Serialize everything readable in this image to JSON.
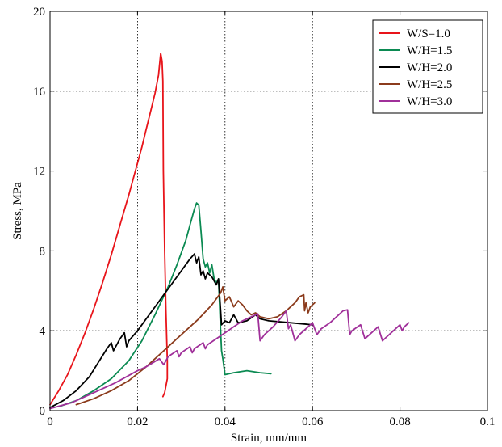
{
  "chart_data": {
    "type": "line",
    "title": "",
    "xlabel": "Strain, mm/mm",
    "ylabel": "Stress, MPa",
    "xlim": [
      0,
      0.1
    ],
    "ylim": [
      0,
      20
    ],
    "x_ticks": [
      0,
      0.02,
      0.04,
      0.06,
      0.08,
      0.1
    ],
    "x_tick_labels": [
      "0",
      "0.02",
      "0.04",
      "0.06",
      "0.08",
      "0.1"
    ],
    "y_ticks": [
      0,
      4,
      8,
      12,
      16,
      20
    ],
    "y_tick_labels": [
      "0",
      "4",
      "8",
      "12",
      "16",
      "20"
    ],
    "grid": true,
    "legend_position": "top-right",
    "series": [
      {
        "name": "W/S=1.0",
        "color": "#e8141a",
        "points": [
          [
            0,
            0.3
          ],
          [
            0.002,
            1.0
          ],
          [
            0.004,
            1.8
          ],
          [
            0.006,
            2.8
          ],
          [
            0.008,
            3.9
          ],
          [
            0.01,
            5.1
          ],
          [
            0.012,
            6.4
          ],
          [
            0.014,
            7.8
          ],
          [
            0.016,
            9.3
          ],
          [
            0.018,
            10.8
          ],
          [
            0.02,
            12.4
          ],
          [
            0.021,
            13.2
          ],
          [
            0.022,
            14.1
          ],
          [
            0.023,
            15.0
          ],
          [
            0.024,
            15.9
          ],
          [
            0.0248,
            16.8
          ],
          [
            0.0253,
            17.9
          ],
          [
            0.0256,
            17.5
          ],
          [
            0.0258,
            16.5
          ],
          [
            0.0259,
            12.0
          ],
          [
            0.0262,
            8.0
          ],
          [
            0.0265,
            5.0
          ],
          [
            0.0268,
            2.5
          ],
          [
            0.0268,
            1.6
          ],
          [
            0.0262,
            0.9
          ],
          [
            0.0258,
            0.7
          ]
        ]
      },
      {
        "name": "W/H=1.5",
        "color": "#0b8a52",
        "points": [
          [
            0.002,
            0.2
          ],
          [
            0.006,
            0.5
          ],
          [
            0.01,
            1.0
          ],
          [
            0.014,
            1.6
          ],
          [
            0.018,
            2.5
          ],
          [
            0.021,
            3.5
          ],
          [
            0.024,
            4.8
          ],
          [
            0.027,
            6.2
          ],
          [
            0.029,
            7.3
          ],
          [
            0.031,
            8.5
          ],
          [
            0.032,
            9.3
          ],
          [
            0.033,
            10.1
          ],
          [
            0.0335,
            10.4
          ],
          [
            0.034,
            10.3
          ],
          [
            0.0345,
            9.0
          ],
          [
            0.035,
            7.6
          ],
          [
            0.0355,
            7.2
          ],
          [
            0.036,
            7.4
          ],
          [
            0.0365,
            6.9
          ],
          [
            0.037,
            7.3
          ],
          [
            0.0375,
            6.6
          ],
          [
            0.038,
            6.4
          ],
          [
            0.0385,
            6.6
          ],
          [
            0.039,
            4.0
          ],
          [
            0.0392,
            3.0
          ],
          [
            0.0395,
            2.6
          ],
          [
            0.04,
            1.8
          ],
          [
            0.042,
            1.9
          ],
          [
            0.045,
            2.0
          ],
          [
            0.048,
            1.9
          ],
          [
            0.0505,
            1.85
          ]
        ]
      },
      {
        "name": "W/H=2.0",
        "color": "#000000",
        "points": [
          [
            0,
            0.15
          ],
          [
            0.003,
            0.5
          ],
          [
            0.006,
            1.0
          ],
          [
            0.009,
            1.7
          ],
          [
            0.011,
            2.4
          ],
          [
            0.013,
            3.1
          ],
          [
            0.014,
            3.4
          ],
          [
            0.0145,
            3.0
          ],
          [
            0.015,
            3.2
          ],
          [
            0.016,
            3.6
          ],
          [
            0.017,
            3.9
          ],
          [
            0.0175,
            3.2
          ],
          [
            0.018,
            3.5
          ],
          [
            0.02,
            4.0
          ],
          [
            0.022,
            4.6
          ],
          [
            0.024,
            5.2
          ],
          [
            0.026,
            5.8
          ],
          [
            0.028,
            6.4
          ],
          [
            0.03,
            7.0
          ],
          [
            0.031,
            7.3
          ],
          [
            0.032,
            7.6
          ],
          [
            0.033,
            7.85
          ],
          [
            0.0335,
            7.4
          ],
          [
            0.034,
            7.7
          ],
          [
            0.0345,
            6.8
          ],
          [
            0.035,
            7.0
          ],
          [
            0.0355,
            6.6
          ],
          [
            0.036,
            6.9
          ],
          [
            0.037,
            6.7
          ],
          [
            0.038,
            6.3
          ],
          [
            0.0385,
            6.6
          ],
          [
            0.039,
            5.0
          ],
          [
            0.0392,
            4.3
          ],
          [
            0.04,
            4.5
          ],
          [
            0.041,
            4.4
          ],
          [
            0.042,
            4.8
          ],
          [
            0.043,
            4.4
          ],
          [
            0.045,
            4.5
          ],
          [
            0.047,
            4.8
          ],
          [
            0.048,
            4.6
          ],
          [
            0.05,
            4.5
          ],
          [
            0.055,
            4.4
          ],
          [
            0.06,
            4.3
          ]
        ]
      },
      {
        "name": "W/H=2.5",
        "color": "#8b3b1c",
        "points": [
          [
            0.006,
            0.3
          ],
          [
            0.01,
            0.6
          ],
          [
            0.014,
            1.0
          ],
          [
            0.018,
            1.5
          ],
          [
            0.022,
            2.2
          ],
          [
            0.026,
            3.0
          ],
          [
            0.03,
            3.8
          ],
          [
            0.034,
            4.6
          ],
          [
            0.037,
            5.3
          ],
          [
            0.039,
            5.9
          ],
          [
            0.0395,
            6.2
          ],
          [
            0.04,
            5.5
          ],
          [
            0.041,
            5.7
          ],
          [
            0.042,
            5.2
          ],
          [
            0.043,
            5.5
          ],
          [
            0.044,
            5.3
          ],
          [
            0.045,
            5.0
          ],
          [
            0.046,
            4.8
          ],
          [
            0.047,
            4.9
          ],
          [
            0.048,
            4.7
          ],
          [
            0.05,
            4.6
          ],
          [
            0.052,
            4.7
          ],
          [
            0.054,
            5.0
          ],
          [
            0.056,
            5.4
          ],
          [
            0.057,
            5.7
          ],
          [
            0.058,
            5.8
          ],
          [
            0.0582,
            5.0
          ],
          [
            0.0585,
            5.4
          ],
          [
            0.059,
            4.9
          ],
          [
            0.0595,
            5.2
          ],
          [
            0.06,
            5.3
          ],
          [
            0.0605,
            5.4
          ]
        ]
      },
      {
        "name": "W/H=3.0",
        "color": "#a0309a",
        "points": [
          [
            0,
            0.1
          ],
          [
            0.005,
            0.4
          ],
          [
            0.01,
            0.9
          ],
          [
            0.015,
            1.4
          ],
          [
            0.02,
            2.0
          ],
          [
            0.022,
            2.2
          ],
          [
            0.025,
            2.6
          ],
          [
            0.026,
            2.3
          ],
          [
            0.027,
            2.7
          ],
          [
            0.029,
            3.0
          ],
          [
            0.0295,
            2.7
          ],
          [
            0.03,
            2.9
          ],
          [
            0.032,
            3.2
          ],
          [
            0.0325,
            2.9
          ],
          [
            0.033,
            3.1
          ],
          [
            0.035,
            3.4
          ],
          [
            0.0355,
            3.1
          ],
          [
            0.036,
            3.3
          ],
          [
            0.038,
            3.6
          ],
          [
            0.04,
            3.9
          ],
          [
            0.042,
            4.2
          ],
          [
            0.044,
            4.5
          ],
          [
            0.046,
            4.7
          ],
          [
            0.0475,
            4.85
          ],
          [
            0.048,
            3.5
          ],
          [
            0.049,
            3.8
          ],
          [
            0.051,
            4.2
          ],
          [
            0.053,
            4.7
          ],
          [
            0.054,
            5.0
          ],
          [
            0.0545,
            4.1
          ],
          [
            0.055,
            4.3
          ],
          [
            0.056,
            3.5
          ],
          [
            0.057,
            3.8
          ],
          [
            0.059,
            4.2
          ],
          [
            0.06,
            4.4
          ],
          [
            0.061,
            3.8
          ],
          [
            0.062,
            4.1
          ],
          [
            0.064,
            4.4
          ],
          [
            0.066,
            4.8
          ],
          [
            0.067,
            5.0
          ],
          [
            0.068,
            5.05
          ],
          [
            0.0685,
            3.8
          ],
          [
            0.069,
            4.0
          ],
          [
            0.071,
            4.3
          ],
          [
            0.072,
            3.6
          ],
          [
            0.073,
            3.8
          ],
          [
            0.075,
            4.2
          ],
          [
            0.076,
            3.5
          ],
          [
            0.077,
            3.7
          ],
          [
            0.079,
            4.1
          ],
          [
            0.08,
            4.3
          ],
          [
            0.0805,
            4.0
          ],
          [
            0.081,
            4.2
          ],
          [
            0.082,
            4.4
          ]
        ]
      }
    ]
  }
}
